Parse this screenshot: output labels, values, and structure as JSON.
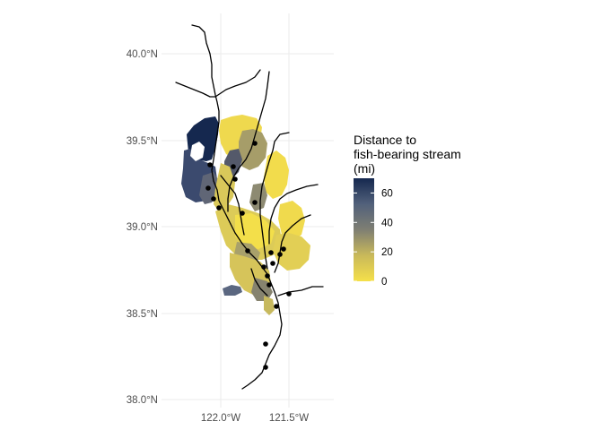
{
  "map": {
    "lat_labels": [
      "40.0°N",
      "39.5°N",
      "39.0°N",
      "38.5°N",
      "38.0°N"
    ],
    "lon_labels": [
      "122.0°W",
      "121.5°W"
    ],
    "lat_values": [
      40.0,
      39.5,
      39.0,
      38.5,
      38.0
    ],
    "lon_values": [
      -122.0,
      -121.5
    ]
  },
  "legend": {
    "title_lines": [
      "Distance to",
      "fish-bearing stream",
      "(mi)"
    ],
    "ticks": [
      "60",
      "40",
      "20",
      "0"
    ],
    "tick_values": [
      60,
      40,
      20,
      0
    ],
    "range": [
      0,
      70
    ],
    "colors": {
      "low": "#f5e04a",
      "mid_low": "#c9b95a",
      "mid": "#7f7f73",
      "mid_high": "#52617b",
      "high": "#15284f"
    }
  }
}
